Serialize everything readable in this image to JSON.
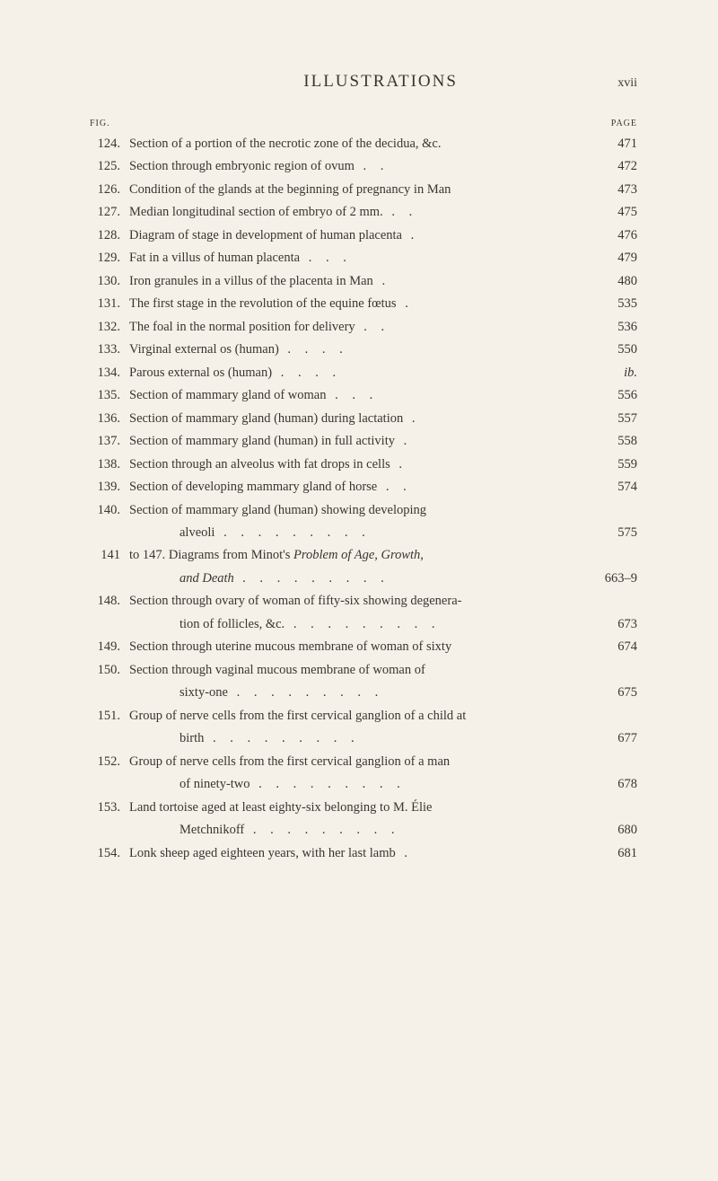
{
  "header": {
    "title": "ILLUSTRATIONS",
    "pageNumeral": "xvii"
  },
  "columnLabels": {
    "fig": "FIG.",
    "page": "PAGE"
  },
  "entries": [
    {
      "num": "124.",
      "text": "Section of a portion of the necrotic zone of the decidua, &c.",
      "page": "471"
    },
    {
      "num": "125.",
      "text": "Section through embryonic region of ovum",
      "page": "472"
    },
    {
      "num": "126.",
      "text": "Condition of the glands at the beginning of pregnancy in Man",
      "page": "473"
    },
    {
      "num": "127.",
      "text": "Median longitudinal section of embryo of 2 mm.",
      "page": "475"
    },
    {
      "num": "128.",
      "text": "Diagram of stage in development of human placenta",
      "page": "476"
    },
    {
      "num": "129.",
      "text": "Fat in a villus of human placenta",
      "page": "479"
    },
    {
      "num": "130.",
      "text": "Iron granules in a villus of the placenta in Man",
      "page": "480"
    },
    {
      "num": "131.",
      "text": "The first stage in the revolution of the equine fœtus",
      "page": "535"
    },
    {
      "num": "132.",
      "text": "The foal in the normal position for delivery",
      "page": "536"
    },
    {
      "num": "133.",
      "text": "Virginal external os (human)",
      "page": "550"
    },
    {
      "num": "134.",
      "text": "Parous external os (human)",
      "page": "ib.",
      "italic": true
    },
    {
      "num": "135.",
      "text": "Section of mammary gland of woman",
      "page": "556"
    },
    {
      "num": "136.",
      "text": "Section of mammary gland (human) during lactation",
      "page": "557"
    },
    {
      "num": "137.",
      "text": "Section of mammary gland (human) in full activity",
      "page": "558"
    },
    {
      "num": "138.",
      "text": "Section through an alveolus with fat drops in cells",
      "page": "559"
    },
    {
      "num": "139.",
      "text": "Section of developing mammary gland of horse",
      "page": "574"
    },
    {
      "num": "140.",
      "text": "Section of mammary gland (human) showing developing",
      "page": ""
    },
    {
      "num": "",
      "text": "alveoli",
      "page": "575",
      "continuation": true
    },
    {
      "num": "141",
      "text": "to 147. Diagrams from Minot's Problem of Age, Growth,",
      "page": "",
      "hasItalic": true,
      "italicPart": "Problem of Age, Growth,"
    },
    {
      "num": "",
      "text": "and Death",
      "page": "663–9",
      "continuation": true,
      "italic": true
    },
    {
      "num": "148.",
      "text": "Section through ovary of woman of fifty-six showing degenera-",
      "page": ""
    },
    {
      "num": "",
      "text": "tion of follicles, &c.",
      "page": "673",
      "continuation": true
    },
    {
      "num": "149.",
      "text": "Section through uterine mucous membrane of woman of sixty",
      "page": "674"
    },
    {
      "num": "150.",
      "text": "Section through vaginal mucous membrane of woman of",
      "page": ""
    },
    {
      "num": "",
      "text": "sixty-one",
      "page": "675",
      "continuation": true
    },
    {
      "num": "151.",
      "text": "Group of nerve cells from the first cervical ganglion of a child at",
      "page": ""
    },
    {
      "num": "",
      "text": "birth",
      "page": "677",
      "continuation": true
    },
    {
      "num": "152.",
      "text": "Group of nerve cells from the first cervical ganglion of a man",
      "page": ""
    },
    {
      "num": "",
      "text": "of ninety-two",
      "page": "678",
      "continuation": true
    },
    {
      "num": "153.",
      "text": "Land tortoise aged at least eighty-six belonging to M. Élie",
      "page": ""
    },
    {
      "num": "",
      "text": "Metchnikoff",
      "page": "680",
      "continuation": true
    },
    {
      "num": "154.",
      "text": "Lonk sheep aged eighteen years, with her last lamb",
      "page": "681"
    }
  ]
}
